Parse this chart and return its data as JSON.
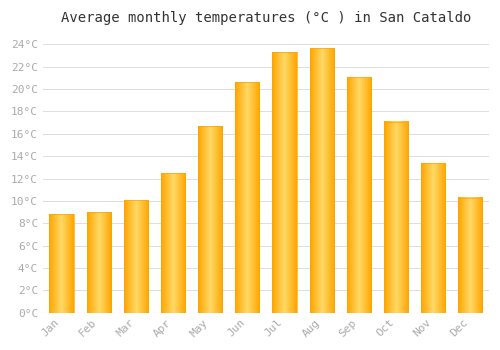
{
  "title": "Average monthly temperatures (°C ) in San Cataldo",
  "months": [
    "Jan",
    "Feb",
    "Mar",
    "Apr",
    "May",
    "Jun",
    "Jul",
    "Aug",
    "Sep",
    "Oct",
    "Nov",
    "Dec"
  ],
  "temperatures": [
    8.8,
    9.0,
    10.1,
    12.5,
    16.7,
    20.6,
    23.3,
    23.7,
    21.1,
    17.1,
    13.4,
    10.3
  ],
  "bar_color_center": "#FFD966",
  "bar_color_edge": "#FFA500",
  "background_color": "#FFFFFF",
  "plot_bg_color": "#FFFFFF",
  "grid_color": "#DDDDDD",
  "ylim": [
    0,
    25
  ],
  "ytick_step": 2,
  "title_fontsize": 10,
  "tick_fontsize": 8,
  "tick_font_color": "#AAAAAA"
}
